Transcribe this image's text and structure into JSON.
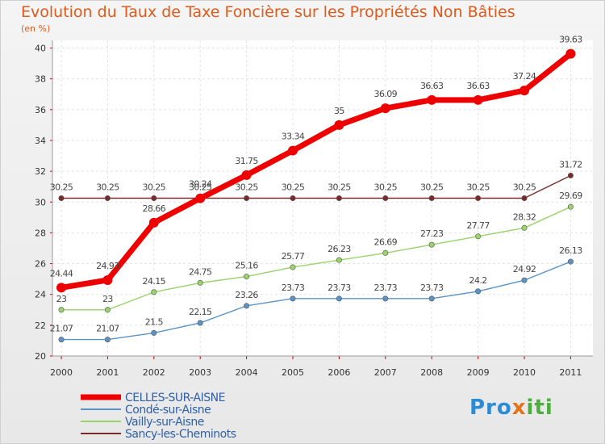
{
  "chart_data": {
    "type": "line",
    "title": "Evolution du Taux de Taxe Foncière sur les Propriétés Non Bâties",
    "subtitle": "(en %)",
    "x": [
      "2000",
      "2001",
      "2002",
      "2003",
      "2004",
      "2005",
      "2006",
      "2007",
      "2008",
      "2009",
      "2010",
      "2011"
    ],
    "yticks": [
      "20",
      "22",
      "24",
      "26",
      "28",
      "30",
      "32",
      "34",
      "36",
      "38",
      "40"
    ],
    "ylim": [
      20,
      40.5
    ],
    "grid": true,
    "legend_position": "bottom-left",
    "series": [
      {
        "name": "CELLES-SUR-AISNE",
        "color": "#ee0000",
        "width": 7,
        "point_radius": 6,
        "values": [
          24.44,
          24.93,
          28.66,
          30.24,
          31.75,
          33.34,
          35,
          36.09,
          36.63,
          36.63,
          37.24,
          39.63
        ],
        "labels": [
          "24.44",
          "24.93",
          "28.66",
          "30.24",
          "31.75",
          "33.34",
          "35",
          "36.09",
          "36.63",
          "36.63",
          "37.24",
          "39.63"
        ]
      },
      {
        "name": "Condé-sur-Aisne",
        "color": "#5b93c7",
        "width": 1.4,
        "point_radius": 3.2,
        "values": [
          21.07,
          21.07,
          21.5,
          22.15,
          23.26,
          23.73,
          23.73,
          23.73,
          23.73,
          24.2,
          24.92,
          26.13
        ],
        "labels": [
          "21.07",
          "21.07",
          "21.5",
          "22.15",
          "23.26",
          "23.73",
          "23.73",
          "23.73",
          "23.73",
          "24.2",
          "24.92",
          "26.13"
        ]
      },
      {
        "name": "Vailly-sur-Aisne",
        "color": "#9ad36a",
        "width": 1.4,
        "point_radius": 3.2,
        "values": [
          23,
          23,
          24.15,
          24.75,
          25.16,
          25.77,
          26.23,
          26.69,
          27.23,
          27.77,
          28.32,
          29.69
        ],
        "labels": [
          "23",
          "23",
          "24.15",
          "24.75",
          "25.16",
          "25.77",
          "26.23",
          "26.69",
          "27.23",
          "27.77",
          "28.32",
          "29.69"
        ]
      },
      {
        "name": "Sancy-les-Cheminots",
        "color": "#7a2a2a",
        "width": 1.4,
        "point_radius": 3.2,
        "values": [
          30.25,
          30.25,
          30.25,
          30.25,
          30.25,
          30.25,
          30.25,
          30.25,
          30.25,
          30.25,
          30.25,
          31.72
        ],
        "labels": [
          "30.25",
          "30.25",
          "30.25",
          "30.25",
          "30.25",
          "30.25",
          "30.25",
          "30.25",
          "30.25",
          "30.25",
          "30.25",
          "31.72"
        ]
      }
    ]
  },
  "logo": {
    "part1": "Pro",
    "part2": "x",
    "part3": "iti"
  }
}
